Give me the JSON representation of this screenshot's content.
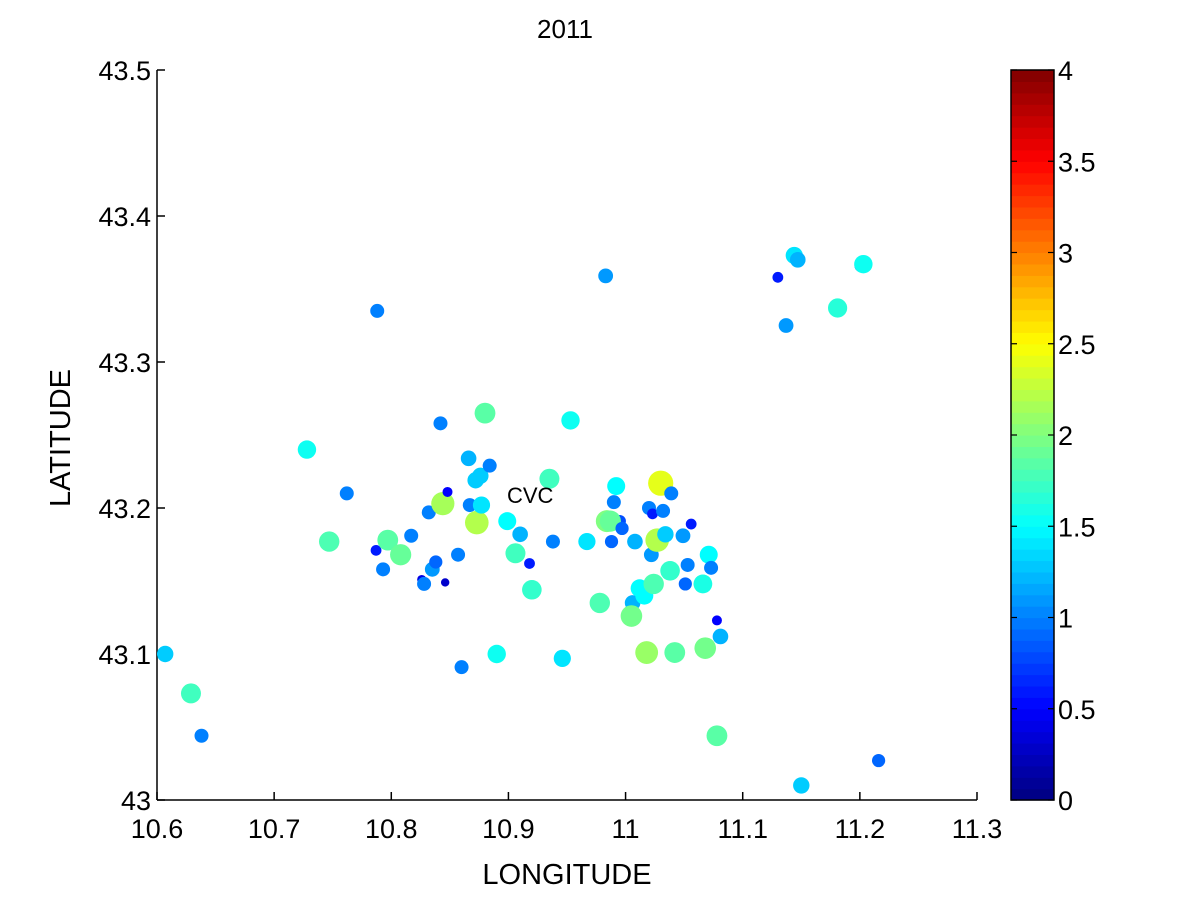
{
  "chart_data": {
    "type": "scatter",
    "title": "2011",
    "xlabel": "LONGITUDE",
    "ylabel": "LATITUDE",
    "xlim": [
      10.6,
      11.3
    ],
    "ylim": [
      43.0,
      43.5
    ],
    "xticks": [
      "10.6",
      "10.7",
      "10.8",
      "10.9",
      "11",
      "11.1",
      "11.2",
      "11.3"
    ],
    "yticks": [
      "43",
      "43.1",
      "43.2",
      "43.3",
      "43.4",
      "43.5"
    ],
    "grid": false,
    "colorbar": {
      "colormap": "jet",
      "range": [
        0,
        4
      ],
      "ticks": [
        "0",
        "0.5",
        "1",
        "1.5",
        "2",
        "2.5",
        "3",
        "3.5",
        "4"
      ]
    },
    "annotation": {
      "text": "CVC",
      "x": 10.9,
      "y": 43.205
    },
    "series": [
      {
        "x": [
          10.607,
          10.629,
          10.638,
          10.728,
          10.747,
          10.762,
          10.788,
          10.787,
          10.793,
          10.797,
          10.808,
          10.817,
          10.826,
          10.828,
          10.832,
          10.835,
          10.838,
          10.842,
          10.844,
          10.846,
          10.848,
          10.857,
          10.86,
          10.866,
          10.867,
          10.872,
          10.873,
          10.876,
          10.877,
          10.88,
          10.884,
          10.89,
          10.899,
          10.906,
          10.91,
          10.918,
          10.92,
          10.935,
          10.938,
          10.946,
          10.953,
          10.967,
          10.978,
          10.983,
          10.984,
          10.988,
          10.99,
          10.992,
          10.995,
          10.987,
          10.997,
          11.006,
          11.005,
          11.008,
          11.012,
          11.016,
          11.018,
          11.02,
          11.022,
          11.023,
          11.024,
          11.027,
          11.03,
          11.032,
          11.034,
          11.038,
          11.039,
          11.042,
          11.049,
          11.051,
          11.053,
          11.056,
          11.066,
          11.068,
          11.071,
          11.073,
          11.078,
          11.078,
          11.081,
          11.13,
          11.137,
          11.144,
          11.147,
          11.15,
          11.181,
          11.201,
          11.203,
          11.216
        ],
        "y": [
          43.1,
          43.073,
          43.044,
          43.24,
          43.177,
          43.21,
          43.335,
          43.171,
          43.158,
          43.178,
          43.168,
          43.181,
          43.151,
          43.148,
          43.197,
          43.158,
          43.163,
          43.258,
          43.203,
          43.149,
          43.211,
          43.168,
          43.091,
          43.234,
          43.202,
          43.219,
          43.19,
          43.222,
          43.202,
          43.265,
          43.229,
          43.1,
          43.191,
          43.169,
          43.182,
          43.162,
          43.144,
          43.22,
          43.177,
          43.097,
          43.26,
          43.177,
          43.135,
          43.359,
          43.191,
          43.177,
          43.204,
          43.215,
          43.191,
          43.191,
          43.186,
          43.135,
          43.126,
          43.177,
          43.145,
          43.14,
          43.101,
          43.2,
          43.168,
          43.196,
          43.148,
          43.178,
          43.217,
          43.198,
          43.182,
          43.157,
          43.21,
          43.101,
          43.181,
          43.148,
          43.161,
          43.189,
          43.148,
          43.104,
          43.168,
          43.159,
          43.044,
          43.123,
          43.112,
          43.358,
          43.325,
          43.373,
          43.37,
          43.01,
          43.337,
          43.366,
          43.367,
          43.027
        ],
        "values": [
          1.3,
          1.75,
          1.0,
          1.55,
          1.8,
          1.0,
          1.0,
          0.6,
          1.0,
          1.85,
          1.9,
          1.0,
          0.4,
          1.0,
          1.0,
          1.1,
          0.9,
          1.0,
          2.15,
          0.3,
          0.5,
          1.0,
          1.0,
          1.2,
          1.0,
          1.3,
          2.2,
          1.3,
          1.4,
          1.85,
          1.0,
          1.55,
          1.5,
          1.75,
          1.2,
          0.6,
          1.7,
          1.75,
          1.0,
          1.4,
          1.55,
          1.4,
          1.8,
          1.1,
          2.0,
          0.9,
          1.0,
          1.5,
          0.8,
          1.9,
          0.9,
          1.2,
          1.95,
          1.2,
          1.5,
          1.5,
          2.1,
          1.0,
          1.1,
          0.6,
          1.8,
          2.2,
          2.4,
          1.0,
          1.3,
          1.7,
          1.0,
          1.85,
          1.1,
          0.9,
          1.0,
          0.6,
          1.6,
          1.95,
          1.5,
          1.0,
          1.85,
          0.5,
          1.2,
          0.6,
          1.1,
          1.4,
          1.2,
          1.3,
          1.65,
          0.9,
          1.55,
          0.9
        ]
      }
    ]
  }
}
